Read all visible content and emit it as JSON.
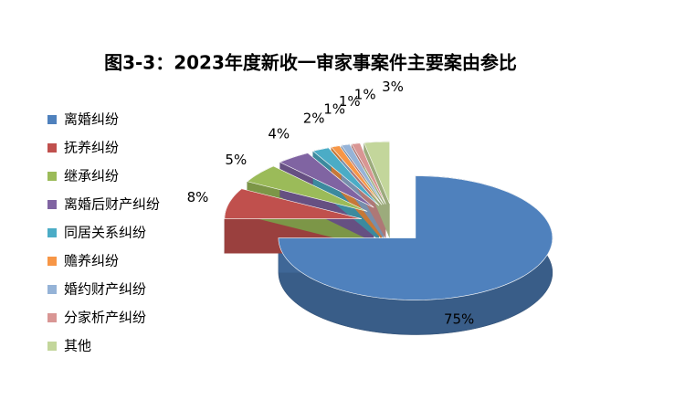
{
  "chart_data": {
    "type": "pie",
    "title": "图3-3：2023年度新收一审家事案件主要案由参比",
    "categories": [
      "离婚纠纷",
      "抚养纠纷",
      "继承纠纷",
      "离婚后财产纠纷",
      "同居关系纠纷",
      "赡养纠纷",
      "婚约财产纠纷",
      "分家析产纠纷",
      "其他"
    ],
    "values": [
      75,
      8,
      5,
      4,
      2,
      1,
      1,
      1,
      3
    ],
    "value_labels": [
      "75%",
      "8%",
      "5%",
      "4%",
      "2%",
      "1%",
      "1%",
      "1%",
      "3%"
    ],
    "colors": [
      "#4F81BD",
      "#C0504D",
      "#9BBB59",
      "#8064A2",
      "#4BACC6",
      "#F79646",
      "#95B3D7",
      "#D99694",
      "#C3D69B"
    ],
    "legend": "left"
  }
}
